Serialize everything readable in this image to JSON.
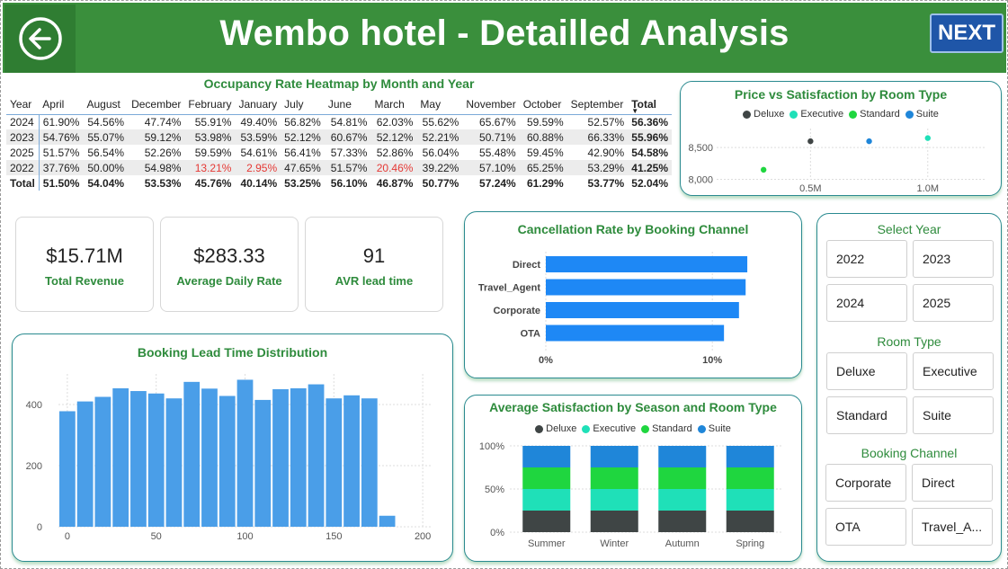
{
  "header": {
    "title": "Wembo hotel - Detailled Analysis",
    "next_label": "NEXT"
  },
  "heatmap": {
    "title": "Occupancy Rate Heatmap by Month and Year",
    "columns": [
      "Year",
      "April",
      "August",
      "December",
      "February",
      "January",
      "July",
      "June",
      "March",
      "May",
      "November",
      "October",
      "September",
      "Total"
    ],
    "rows": [
      {
        "year": "2024",
        "values": [
          "61.90%",
          "54.56%",
          "47.74%",
          "55.91%",
          "49.40%",
          "56.82%",
          "54.81%",
          "62.03%",
          "55.62%",
          "65.67%",
          "59.59%",
          "52.57%",
          "56.36%"
        ]
      },
      {
        "year": "2023",
        "values": [
          "54.76%",
          "55.07%",
          "59.12%",
          "53.98%",
          "53.59%",
          "52.12%",
          "60.67%",
          "52.12%",
          "52.21%",
          "50.71%",
          "60.88%",
          "66.33%",
          "55.96%"
        ]
      },
      {
        "year": "2025",
        "values": [
          "51.57%",
          "56.54%",
          "52.26%",
          "59.59%",
          "54.61%",
          "56.41%",
          "57.33%",
          "52.86%",
          "56.04%",
          "55.48%",
          "59.45%",
          "42.90%",
          "54.58%"
        ]
      },
      {
        "year": "2022",
        "values": [
          "37.76%",
          "50.00%",
          "54.98%",
          "13.21%",
          "2.95%",
          "47.65%",
          "51.57%",
          "20.46%",
          "39.22%",
          "57.10%",
          "65.25%",
          "53.29%",
          "41.25%"
        ]
      }
    ],
    "total_row": {
      "year": "Total",
      "values": [
        "51.50%",
        "54.04%",
        "53.53%",
        "45.76%",
        "40.14%",
        "53.25%",
        "56.10%",
        "46.87%",
        "50.77%",
        "57.24%",
        "61.29%",
        "53.77%",
        "52.04%"
      ]
    }
  },
  "kpis": [
    {
      "value": "$15.71M",
      "label": "Total Revenue"
    },
    {
      "value": "$283.33",
      "label": "Average Daily Rate"
    },
    {
      "value": "91",
      "label": "AVR lead time"
    }
  ],
  "colors": {
    "green": "#3a8f3c",
    "deluxe": "#3f4545",
    "executive": "#1fe0b8",
    "standard": "#1fd63f",
    "suite": "#1f86d9",
    "bar_blue": "#4a9ee8",
    "channel_blue": "#1e88f5"
  },
  "scatter": {
    "title": "Price vs Satisfaction by Room Type",
    "legend": [
      "Deluxe",
      "Executive",
      "Standard",
      "Suite"
    ],
    "y_ticks": [
      "8,500",
      "8,000"
    ],
    "x_ticks": [
      "0.5M",
      "1.0M"
    ],
    "chart_data": {
      "type": "scatter",
      "points": [
        {
          "series": "Deluxe",
          "x": 0.5,
          "y": 8600
        },
        {
          "series": "Executive",
          "x": 1.0,
          "y": 8650
        },
        {
          "series": "Standard",
          "x": 0.3,
          "y": 8150
        },
        {
          "series": "Suite",
          "x": 0.75,
          "y": 8600
        }
      ],
      "xlim": [
        0.1,
        1.25
      ],
      "ylim": [
        7950,
        8800
      ]
    }
  },
  "cancellation": {
    "title": "Cancellation Rate by Booking Channel",
    "x_ticks": [
      "0%",
      "10%"
    ],
    "chart_data": {
      "type": "bar",
      "categories": [
        "Direct",
        "Travel_Agent",
        "Corporate",
        "OTA"
      ],
      "values": [
        12.1,
        12.0,
        11.6,
        10.7
      ],
      "xlim": [
        0,
        13.5
      ]
    }
  },
  "lead_time": {
    "title": "Booking Lead Time Distribution",
    "x_ticks": [
      "0",
      "50",
      "100",
      "150",
      "200"
    ],
    "y_ticks": [
      "0",
      "200",
      "400"
    ],
    "chart_data": {
      "type": "bar",
      "bin_width": 10,
      "x_start": 0,
      "values": [
        378,
        410,
        425,
        453,
        444,
        436,
        420,
        474,
        452,
        428,
        481,
        415,
        450,
        453,
        466,
        420,
        430,
        420,
        36
      ],
      "xlim": [
        -5,
        205
      ],
      "ylim": [
        0,
        500
      ]
    }
  },
  "satisfaction": {
    "title": "Average Satisfaction by Season and Room Type",
    "legend": [
      "Deluxe",
      "Executive",
      "Standard",
      "Suite"
    ],
    "y_ticks": [
      "100%",
      "50%",
      "0%"
    ],
    "chart_data": {
      "type": "bar",
      "stacked": true,
      "categories": [
        "Summer",
        "Winter",
        "Autumn",
        "Spring"
      ],
      "series": [
        {
          "name": "Deluxe",
          "values": [
            25,
            25,
            25,
            25
          ]
        },
        {
          "name": "Executive",
          "values": [
            25,
            25,
            25,
            25
          ]
        },
        {
          "name": "Standard",
          "values": [
            25,
            25,
            25,
            25
          ]
        },
        {
          "name": "Suite",
          "values": [
            25,
            25,
            25,
            25
          ]
        }
      ],
      "ylim": [
        0,
        100
      ]
    }
  },
  "slicers": {
    "year": {
      "title": "Select Year",
      "items": [
        "2022",
        "2023",
        "2024",
        "2025"
      ]
    },
    "room": {
      "title": "Room Type",
      "items": [
        "Deluxe",
        "Executive",
        "Standard",
        "Suite"
      ]
    },
    "channel": {
      "title": "Booking Channel",
      "items": [
        "Corporate",
        "Direct",
        "OTA",
        "Travel_A..."
      ]
    }
  }
}
